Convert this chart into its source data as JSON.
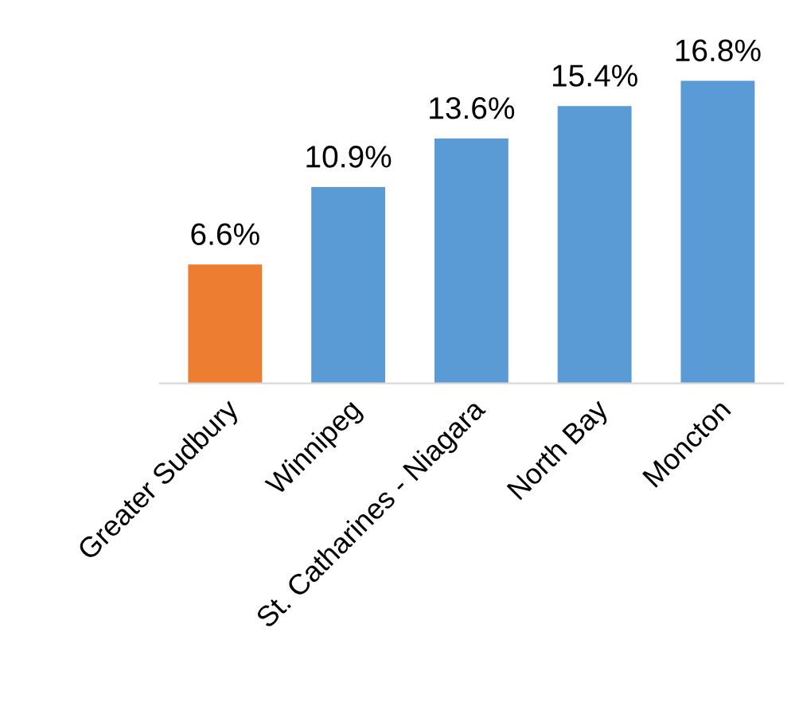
{
  "chart_data": {
    "type": "bar",
    "categories": [
      "Greater Sudbury",
      "Winnipeg",
      "St. Catharines - Niagara",
      "North Bay",
      "Moncton"
    ],
    "values": [
      6.6,
      10.9,
      13.6,
      15.4,
      16.8
    ],
    "colors": [
      "#ed7d31",
      "#5b9bd5",
      "#5b9bd5",
      "#5b9bd5",
      "#5b9bd5"
    ],
    "value_labels": [
      "6.6%",
      "10.9%",
      "13.6%",
      "15.4%",
      "16.8%"
    ],
    "grid": false,
    "legend": false
  }
}
